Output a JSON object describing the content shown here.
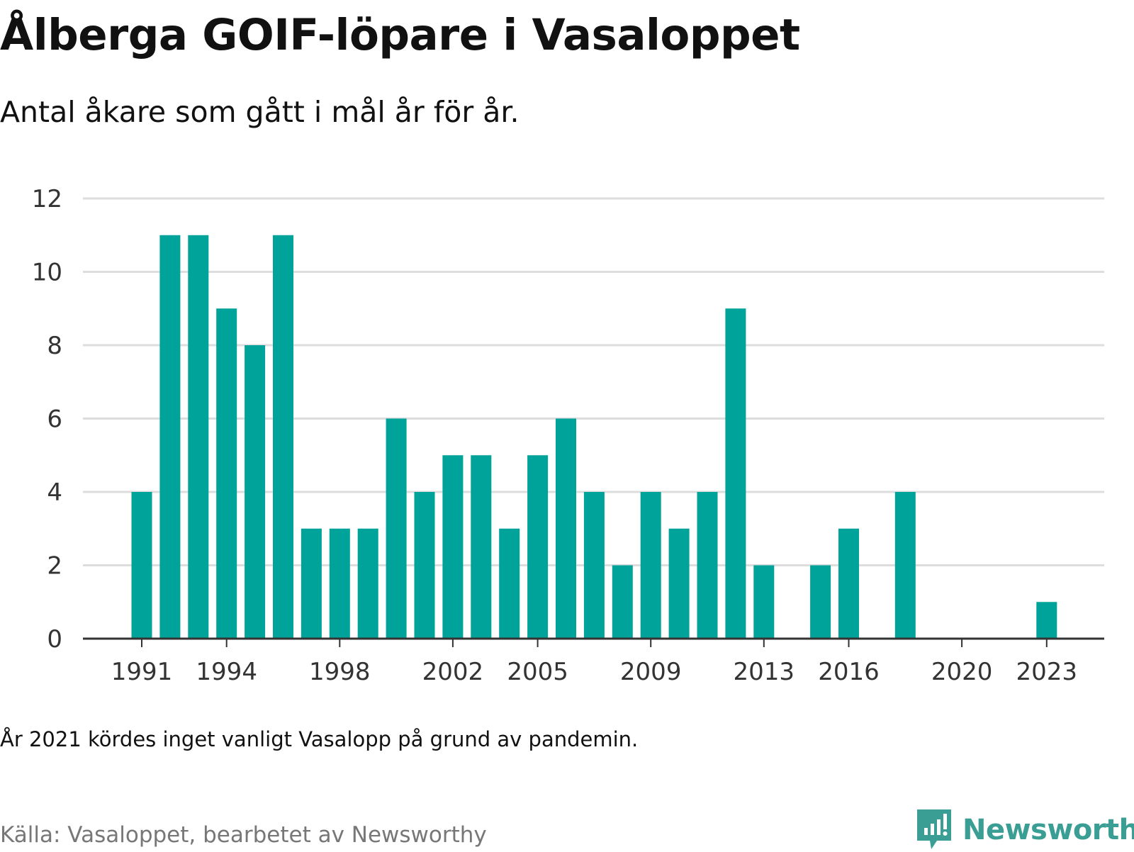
{
  "title": "Ålberga GOIF-löpare i Vasaloppet",
  "subtitle": "Antal åkare som gått i mål år för år.",
  "note": "År 2021 kördes inget vanligt Vasalopp på grund av pandemin.",
  "source": "Källa: Vasaloppet, bearbetet av Newsworthy",
  "brand": {
    "name": "Newsworthy",
    "icon": "newsworthy-logo-icon"
  },
  "colors": {
    "bar": "#00a39a",
    "grid": "#dddddd",
    "axis": "#333333",
    "brand": "#3a9e94",
    "source": "#777777"
  },
  "chart_data": {
    "type": "bar",
    "x": [
      1991,
      1992,
      1993,
      1994,
      1995,
      1996,
      1997,
      1998,
      1999,
      2000,
      2001,
      2002,
      2003,
      2004,
      2005,
      2006,
      2007,
      2008,
      2009,
      2010,
      2011,
      2012,
      2013,
      2014,
      2015,
      2016,
      2017,
      2018,
      2019,
      2020,
      2021,
      2022,
      2023
    ],
    "values": [
      4,
      11,
      11,
      9,
      8,
      11,
      3,
      3,
      3,
      6,
      4,
      5,
      5,
      3,
      5,
      6,
      4,
      2,
      4,
      3,
      4,
      9,
      2,
      0,
      2,
      3,
      0,
      4,
      0,
      0,
      0,
      0,
      1
    ],
    "x_ticks": [
      1991,
      1994,
      1998,
      2002,
      2005,
      2009,
      2013,
      2016,
      2020,
      2023
    ],
    "y_ticks": [
      0,
      2,
      4,
      6,
      8,
      10,
      12
    ],
    "ylim": [
      0,
      12
    ],
    "xlabel": "",
    "ylabel": "",
    "grid": true,
    "legend": "none"
  }
}
